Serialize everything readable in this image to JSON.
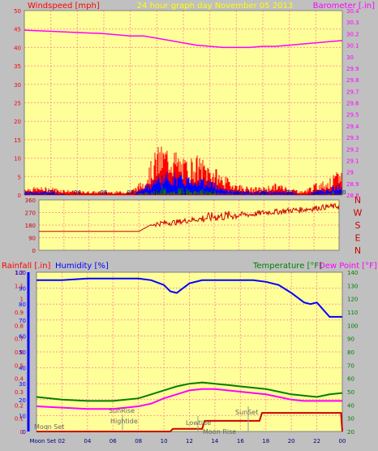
{
  "panel1": {
    "left_title": "Windspeed [mph]",
    "center_title": "24 hour graph day   November 05 2013",
    "right_title": "Barometer [.in]",
    "colors": {
      "wind": "#ff0000",
      "baro": "#ff00ff",
      "title_center": "#ffff00",
      "plot_bg": "#ffff99",
      "grid": "#ff9999"
    }
  },
  "panel2": {
    "right_labels": [
      "N",
      "W",
      "S",
      "E",
      "N"
    ],
    "colors": {
      "direction": "#cc0000",
      "labels": "#cc0000"
    }
  },
  "panel3": {
    "left_title_1": "Rainfall [.in]",
    "left_title_2": "Humidity [%]",
    "right_title_1": "Temperature [°F]",
    "right_title_2": "Dew Point [°F]",
    "annotations": [
      "Moon Set",
      "SunRise",
      "Hightide",
      "Lowtide",
      "Moon Rise",
      "SunSet"
    ],
    "x_first_label": "Moon Set 02",
    "colors": {
      "rain": "#ff0000",
      "humidity": "#0000ff",
      "temperature": "#008000",
      "dewpoint": "#ff00ff"
    }
  },
  "chart_data": [
    {
      "type": "line",
      "title": "24 hour graph day   November 05 2013",
      "x_ticks": [
        "02",
        "04",
        "06",
        "08",
        "10",
        "12",
        "14",
        "16",
        "18",
        "20",
        "22",
        "00"
      ],
      "x_range_hours": [
        0,
        24
      ],
      "left_axis": {
        "label": "Windspeed [mph]",
        "ylim": [
          0,
          50
        ],
        "ticks": [
          0,
          5,
          10,
          15,
          20,
          25,
          30,
          35,
          40,
          45,
          50
        ]
      },
      "right_axis": {
        "label": "Barometer [.in]",
        "ylim": [
          28.8,
          30.4
        ],
        "ticks": [
          "28.8",
          "28.9",
          "29",
          "29.1",
          "29.2",
          "29.3",
          "29.4",
          "29.5",
          "29.6",
          "29.7",
          "29.8",
          "29.9",
          "30",
          "30.1",
          "30.2",
          "30.3",
          "30.4"
        ]
      },
      "series": [
        {
          "name": "Barometer [.in]",
          "axis": "right",
          "x": [
            0,
            2,
            4,
            6,
            8,
            9,
            10,
            11,
            12,
            13,
            14,
            15,
            16,
            17,
            18,
            19,
            20,
            21,
            22,
            23,
            24
          ],
          "values": [
            30.23,
            30.22,
            30.21,
            30.2,
            30.18,
            30.18,
            30.16,
            30.14,
            30.12,
            30.1,
            30.09,
            30.08,
            30.08,
            30.08,
            30.09,
            30.09,
            30.1,
            30.11,
            30.12,
            30.13,
            30.14
          ]
        },
        {
          "name": "Windspeed [mph]",
          "axis": "left",
          "gust_envelope": {
            "x": [
              0,
              2,
              4,
              6,
              8,
              9,
              10,
              11,
              12,
              13,
              14,
              15,
              16,
              17,
              18,
              19,
              20,
              21,
              22,
              23,
              24
            ],
            "values": [
              2,
              2,
              1,
              1,
              1,
              4,
              12,
              13,
              9,
              10,
              8,
              5,
              3,
              2,
              2,
              3,
              2,
              1,
              3,
              4,
              7
            ]
          },
          "avg_envelope": {
            "x": [
              0,
              2,
              4,
              6,
              8,
              9,
              10,
              11,
              12,
              13,
              14,
              15,
              16,
              17,
              18,
              19,
              20,
              21,
              22,
              23,
              24
            ],
            "values": [
              1,
              1,
              0,
              0,
              0,
              2,
              5,
              6,
              5,
              5,
              4,
              2,
              1,
              1,
              1,
              1,
              1,
              0,
              1,
              2,
              3
            ]
          }
        }
      ]
    },
    {
      "type": "line",
      "left_axis": {
        "ylim": [
          0,
          360
        ],
        "ticks": [
          0,
          90,
          180,
          270,
          360
        ]
      },
      "series": [
        {
          "name": "Wind direction",
          "x": [
            0,
            2,
            4,
            6,
            8,
            9,
            10,
            11,
            12,
            13,
            14,
            15,
            16,
            17,
            18,
            19,
            20,
            21,
            22,
            23,
            24
          ],
          "values": [
            135,
            135,
            135,
            135,
            135,
            185,
            195,
            200,
            215,
            225,
            240,
            245,
            255,
            255,
            270,
            275,
            285,
            290,
            300,
            310,
            315
          ]
        }
      ]
    },
    {
      "type": "line",
      "x_ticks": [
        "02",
        "04",
        "06",
        "08",
        "10",
        "12",
        "14",
        "16",
        "18",
        "20",
        "22",
        "00"
      ],
      "left_axis_1": {
        "label": "Rainfall [.in]",
        "ylim": [
          0,
          1.2
        ],
        "ticks": [
          "0",
          "0.1",
          "0.2",
          "0.3",
          "0.4",
          "0.5",
          "0.6",
          "0.7",
          "0.8",
          "0.9",
          "1",
          "1.1",
          "1.2"
        ]
      },
      "left_axis_2": {
        "label": "Humidity [%]",
        "ylim": [
          0,
          100
        ],
        "ticks": [
          0,
          10,
          20,
          30,
          40,
          50,
          60,
          70,
          80,
          90,
          100
        ]
      },
      "right_axis": {
        "label": "Temperature [°F] / Dew Point [°F]",
        "ylim": [
          20,
          140
        ],
        "ticks": [
          20,
          30,
          40,
          50,
          60,
          70,
          80,
          90,
          100,
          110,
          120,
          130,
          140
        ]
      },
      "series": [
        {
          "name": "Humidity [%]",
          "axis": "humidity",
          "x": [
            0,
            2,
            4,
            6,
            8,
            9,
            10,
            10.5,
            11,
            12,
            13,
            14,
            15,
            16,
            17,
            18,
            19,
            20,
            21,
            21.5,
            22,
            23,
            24
          ],
          "values": [
            95,
            95,
            96,
            96,
            96,
            95,
            92,
            88,
            87,
            93,
            95,
            95,
            95,
            95,
            95,
            94,
            92,
            87,
            81,
            80,
            81,
            72,
            72
          ]
        },
        {
          "name": "Temperature [°F]",
          "axis": "right",
          "x": [
            0,
            2,
            4,
            6,
            8,
            9,
            10,
            11,
            12,
            13,
            14,
            15,
            16,
            17,
            18,
            19,
            20,
            21,
            22,
            23,
            24
          ],
          "values": [
            46,
            44,
            43,
            43,
            45,
            48,
            51,
            54,
            56,
            57,
            56,
            55,
            54,
            53,
            52,
            50,
            48,
            47,
            46,
            48,
            49
          ]
        },
        {
          "name": "Dew Point [°F]",
          "axis": "right",
          "x": [
            0,
            2,
            4,
            6,
            8,
            9,
            10,
            11,
            12,
            13,
            14,
            15,
            16,
            17,
            18,
            19,
            20,
            21,
            22,
            23,
            24
          ],
          "values": [
            39,
            38,
            37,
            37,
            39,
            41,
            45,
            48,
            51,
            52,
            52,
            51,
            50,
            49,
            48,
            46,
            44,
            43,
            43,
            43,
            43
          ]
        },
        {
          "name": "Rainfall [.in]",
          "axis": "rain",
          "x": [
            0,
            10.5,
            10.7,
            13,
            13.2,
            17.5,
            17.7,
            23.9,
            24
          ],
          "values": [
            0,
            0,
            0.02,
            0.02,
            0.08,
            0.08,
            0.14,
            0.14,
            0
          ]
        }
      ]
    }
  ]
}
